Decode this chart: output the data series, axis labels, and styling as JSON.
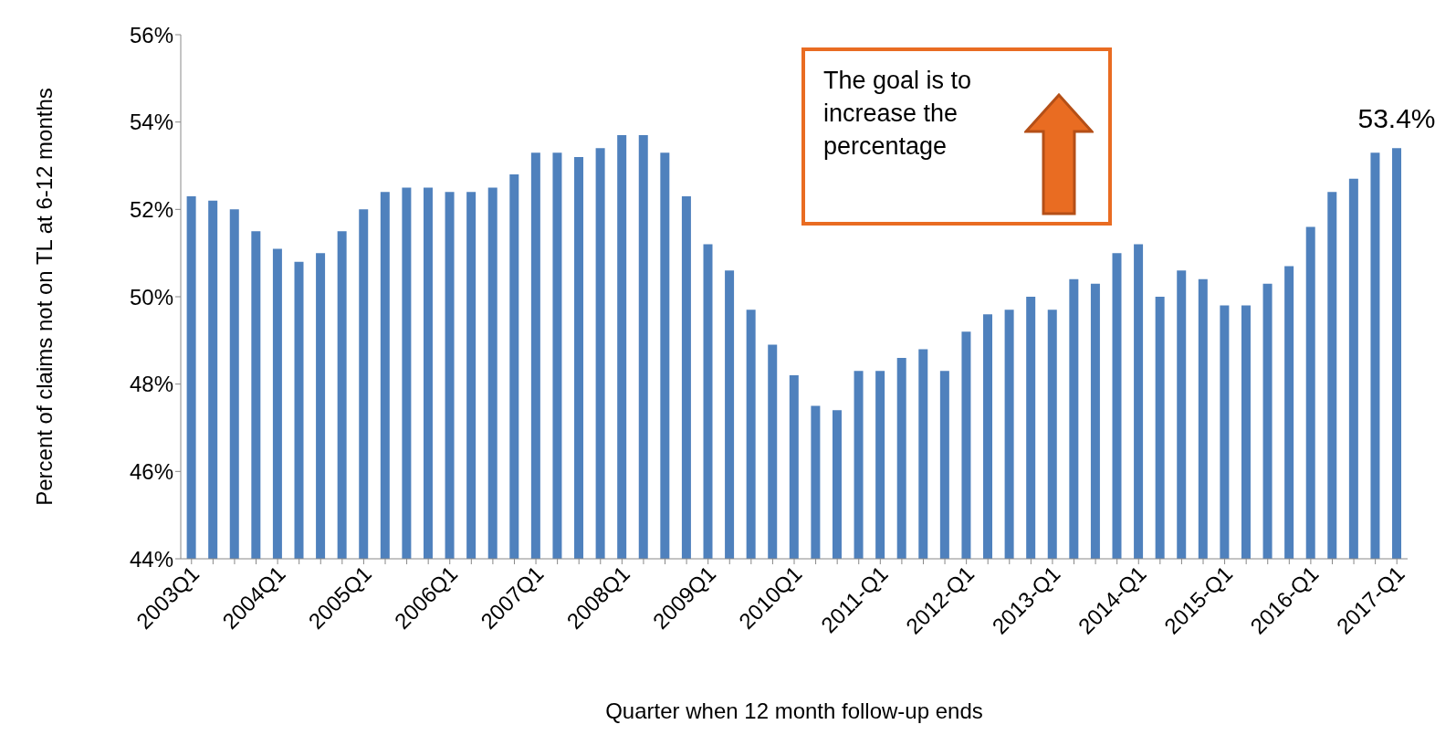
{
  "chart_data": {
    "type": "bar",
    "xlabel": "Quarter when 12 month follow-up ends",
    "ylabel": "Percent of claims not on TL at 6-12 months",
    "categories": [
      "2003Q1",
      null,
      null,
      null,
      "2004Q1",
      null,
      null,
      null,
      "2005Q1",
      null,
      null,
      null,
      "2006Q1",
      null,
      null,
      null,
      "2007Q1",
      null,
      null,
      null,
      "2008Q1",
      null,
      null,
      null,
      "2009Q1",
      null,
      null,
      null,
      "2010Q1",
      null,
      null,
      null,
      "2011-Q1",
      null,
      null,
      null,
      "2012-Q1",
      null,
      null,
      null,
      "2013-Q1",
      null,
      null,
      null,
      "2014-Q1",
      null,
      null,
      null,
      "2015-Q1",
      null,
      null,
      null,
      "2016-Q1",
      null,
      null,
      null,
      "2017-Q1"
    ],
    "values": [
      52.3,
      52.2,
      52.0,
      51.5,
      51.1,
      50.8,
      51.0,
      51.5,
      52.0,
      52.4,
      52.5,
      52.5,
      52.4,
      52.4,
      52.5,
      52.8,
      53.3,
      53.3,
      53.2,
      53.4,
      53.7,
      53.7,
      53.3,
      52.3,
      51.2,
      50.6,
      49.7,
      48.9,
      48.2,
      47.5,
      47.4,
      48.3,
      48.3,
      48.6,
      48.8,
      48.3,
      49.2,
      49.6,
      49.7,
      50.0,
      49.7,
      50.4,
      50.3,
      51.0,
      51.2,
      50.0,
      50.6,
      50.4,
      49.8,
      49.8,
      50.3,
      50.7,
      51.6,
      52.4,
      52.7,
      53.3,
      53.4
    ],
    "value_labels": [
      null,
      null,
      null,
      null,
      null,
      null,
      null,
      null,
      null,
      null,
      null,
      null,
      null,
      null,
      null,
      null,
      null,
      null,
      null,
      null,
      null,
      null,
      null,
      null,
      null,
      null,
      null,
      null,
      null,
      null,
      null,
      null,
      null,
      null,
      null,
      null,
      null,
      null,
      null,
      null,
      null,
      null,
      null,
      null,
      null,
      null,
      null,
      null,
      null,
      null,
      null,
      null,
      null,
      null,
      null,
      null,
      "53.4%"
    ],
    "color": "#4f81bd",
    "ylim": [
      44,
      56
    ],
    "yticks": [
      {
        "value": 44,
        "label": "44%"
      },
      {
        "value": 46,
        "label": "46%"
      },
      {
        "value": 48,
        "label": "48%"
      },
      {
        "value": 50,
        "label": "50%"
      },
      {
        "value": 52,
        "label": "52%"
      },
      {
        "value": 54,
        "label": "54%"
      },
      {
        "value": 56,
        "label": "56%"
      }
    ],
    "annotations": [
      "The goal is to increase the percentage"
    ]
  }
}
